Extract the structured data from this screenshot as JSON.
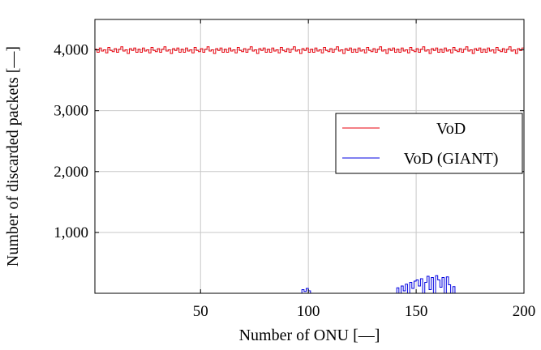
{
  "chart_data": {
    "type": "line",
    "xlabel": "Number of ONU [—]",
    "ylabel": "Number of discarded packets [—]",
    "xlim": [
      1,
      200
    ],
    "ylim": [
      0,
      4500
    ],
    "xticks": [
      50,
      100,
      150,
      200
    ],
    "xtick_labels": [
      "50",
      "100",
      "150",
      "200"
    ],
    "yticks": [
      1000,
      2000,
      3000,
      4000
    ],
    "ytick_labels": [
      "1,000",
      "2,000",
      "3,000",
      "4,000"
    ],
    "grid": true,
    "legend": "right",
    "series": [
      {
        "name": "VoD",
        "color": "#e8000b",
        "step": true,
        "pattern": [
          4010,
          3960,
          4030,
          3980,
          4000,
          3950,
          4040,
          3990,
          3970,
          4020,
          3960,
          4010,
          4050,
          3980,
          4000,
          3940,
          4020,
          3990,
          4030,
          3960
        ],
        "x_start": 1,
        "x_end": 200
      },
      {
        "name": "VoD (GIANT)",
        "color": "#0000e0",
        "step": true,
        "x": [
          96,
          97,
          98,
          99,
          100,
          101,
          140,
          141,
          142,
          143,
          144,
          145,
          146,
          147,
          148,
          149,
          150,
          151,
          152,
          153,
          154,
          155,
          156,
          157,
          158,
          159,
          160,
          161,
          162,
          163,
          164,
          165,
          166,
          167,
          168,
          169
        ],
        "values": [
          0,
          60,
          30,
          80,
          40,
          0,
          0,
          90,
          0,
          120,
          40,
          150,
          0,
          180,
          80,
          200,
          220,
          120,
          240,
          0,
          180,
          280,
          60,
          260,
          0,
          290,
          220,
          100,
          260,
          0,
          270,
          140,
          0,
          110,
          0,
          0
        ]
      }
    ]
  }
}
